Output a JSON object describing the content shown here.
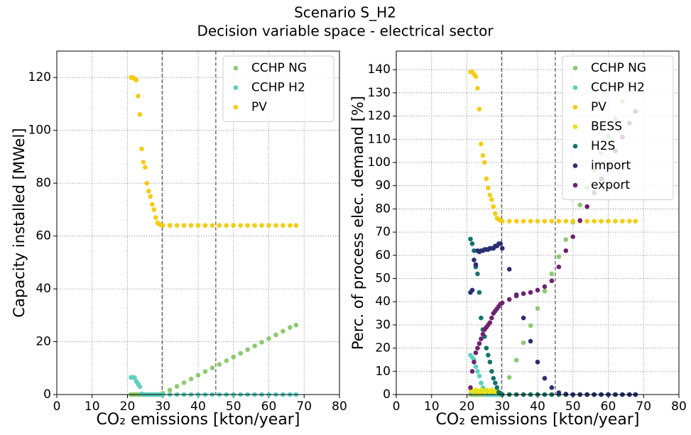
{
  "title": "Scenario S_H2",
  "subtitle": "Decision variable space - electrical sector",
  "chart_data": [
    {
      "type": "scatter",
      "xlabel": "CO₂  emissions [kton/year]",
      "ylabel": "Capacity installed  [MWel]",
      "xlim": [
        0,
        80
      ],
      "ylim": [
        0,
        130
      ],
      "xticks": [
        0,
        10,
        20,
        30,
        40,
        50,
        60,
        70,
        80
      ],
      "yticks": [
        0,
        20,
        40,
        60,
        80,
        100,
        120
      ],
      "grid": true,
      "legend": "upper right",
      "vlines": [
        29.8,
        45
      ],
      "x": [
        21,
        21.5,
        22,
        22.5,
        23,
        23.5,
        24,
        24.5,
        25,
        25.5,
        26,
        26.5,
        27,
        27.5,
        28,
        28.5,
        29,
        29.5,
        30,
        32,
        34,
        36,
        38,
        40,
        42,
        44,
        46,
        48,
        50,
        52,
        54,
        56,
        58,
        60,
        62,
        64,
        66,
        67.7
      ],
      "series": [
        {
          "name": "CCHP NG",
          "color": "#8cc96f",
          "values": [
            0,
            0,
            0,
            0,
            0,
            0,
            0,
            0,
            0,
            0,
            0,
            0,
            0,
            0,
            0,
            0,
            0,
            0,
            0.5,
            1.7,
            3.1,
            4.5,
            5.9,
            7.3,
            8.7,
            10.1,
            11.4,
            12.8,
            14.2,
            15.6,
            17,
            18.4,
            19.8,
            21.2,
            22.6,
            24,
            25.4,
            26.3
          ]
        },
        {
          "name": "CCHP H2",
          "color": "#5ccfc0",
          "values": [
            6.5,
            6.5,
            6.4,
            5,
            4,
            3,
            0.3,
            0,
            0,
            0,
            0,
            0,
            0,
            0,
            0,
            0,
            0,
            0,
            0,
            0,
            0,
            0,
            0,
            0,
            0,
            0,
            0,
            0,
            0,
            0,
            0,
            0,
            0,
            0,
            0,
            0,
            0,
            0
          ]
        },
        {
          "name": "PV",
          "color": "#f4cc14",
          "values": [
            120,
            120,
            119.5,
            119,
            113,
            106,
            93,
            88,
            86,
            80,
            77,
            75,
            72,
            70,
            67,
            65,
            64.5,
            64.2,
            64,
            64,
            64,
            64,
            64,
            64,
            64,
            64,
            64,
            64,
            64,
            64,
            64,
            64,
            64,
            64,
            64,
            64,
            64,
            64
          ]
        }
      ]
    },
    {
      "type": "scatter",
      "xlabel": "CO₂  emissions [kton/year]",
      "ylabel": "Perc. of process elec. demand [%]",
      "xlim": [
        0,
        80
      ],
      "ylim": [
        0,
        148
      ],
      "xticks": [
        0,
        10,
        20,
        30,
        40,
        50,
        60,
        70,
        80
      ],
      "yticks": [
        0,
        10,
        20,
        30,
        40,
        50,
        60,
        70,
        80,
        90,
        100,
        110,
        120,
        130,
        140
      ],
      "grid": true,
      "legend": "upper right",
      "vlines": [
        29.8,
        45
      ],
      "x": [
        21,
        21.5,
        22,
        22.5,
        23,
        23.5,
        24,
        24.5,
        25,
        25.5,
        26,
        26.5,
        27,
        27.5,
        28,
        28.5,
        29,
        29.5,
        30,
        32,
        34,
        36,
        38,
        40,
        42,
        44,
        46,
        48,
        50,
        52,
        54,
        56,
        58,
        60,
        62,
        64,
        66,
        67.7
      ],
      "series": [
        {
          "name": "CCHP NG",
          "color": "#8cc96f",
          "values": [
            0,
            0,
            0,
            0,
            0,
            0,
            0,
            0,
            0,
            0,
            0,
            0,
            0,
            0,
            0,
            0,
            0,
            0,
            0,
            7.4,
            14.8,
            22.3,
            29.7,
            37.1,
            44.6,
            52,
            59.4,
            66.8,
            74.3,
            81.7,
            89.1,
            96.5,
            104,
            111.4,
            118.8,
            126.3,
            133.7,
            140
          ]
        },
        {
          "name": "CCHP H2",
          "color": "#5ccfc0",
          "values": [
            17,
            16,
            15,
            12,
            10,
            8,
            5,
            3,
            1.5,
            0,
            0,
            0,
            0,
            0,
            0,
            0,
            0,
            0,
            0,
            0,
            0,
            0,
            0,
            0,
            0,
            0,
            0,
            0,
            0,
            0,
            0,
            0,
            0,
            0,
            0,
            0,
            0,
            0
          ]
        },
        {
          "name": "PV",
          "color": "#f4cc14",
          "values": [
            139,
            139,
            138,
            137,
            132,
            123,
            108,
            103,
            100,
            93,
            89,
            86,
            84,
            81,
            78,
            76,
            75.5,
            75,
            74.7,
            74.7,
            74.7,
            74.7,
            74.7,
            74.7,
            74.7,
            74.7,
            74.7,
            74.7,
            74.7,
            74.7,
            74.7,
            74.7,
            74.7,
            74.7,
            74.7,
            74.7,
            74.7,
            74.7
          ]
        },
        {
          "name": "BESS",
          "color": "#e6e21a",
          "values": [
            2,
            1.5,
            1,
            2,
            1.5,
            1,
            2,
            1.5,
            1,
            2,
            1.5,
            1,
            2,
            1.5,
            1,
            2,
            1,
            0.5,
            0,
            0,
            0,
            0,
            0,
            0,
            0,
            0,
            0,
            0,
            0,
            0,
            0,
            0,
            0,
            0,
            0,
            0,
            0,
            0
          ]
        },
        {
          "name": "H2S",
          "color": "#14726b",
          "values": [
            67,
            65,
            62,
            55,
            52,
            44,
            33,
            28,
            25,
            20,
            17,
            14,
            10,
            7,
            5,
            3,
            1,
            0.5,
            0,
            0,
            0,
            0,
            0,
            0,
            0,
            0,
            0,
            0,
            0,
            0,
            0,
            0,
            0,
            0,
            0,
            0,
            0,
            0
          ]
        },
        {
          "name": "import",
          "color": "#2a2e72",
          "values": [
            44,
            45,
            58,
            56,
            62,
            61.5,
            62,
            62,
            62.5,
            62.5,
            62.5,
            63,
            63,
            63,
            64,
            64,
            65,
            65,
            63,
            54,
            43,
            33,
            23,
            14,
            7,
            3,
            0.8,
            0.2,
            0,
            0,
            0,
            0,
            0,
            0,
            0,
            0,
            0,
            0
          ]
        },
        {
          "name": "export",
          "color": "#6e2270",
          "values": [
            3,
            10,
            14,
            18,
            20,
            22,
            24,
            26,
            28,
            29,
            30,
            31,
            33,
            35,
            36,
            37,
            38,
            39,
            39.5,
            41,
            42.5,
            43.5,
            44,
            45,
            46.5,
            49,
            55,
            62,
            68,
            75,
            81,
            87,
            93,
            99,
            105,
            111,
            117,
            122
          ]
        }
      ]
    }
  ]
}
